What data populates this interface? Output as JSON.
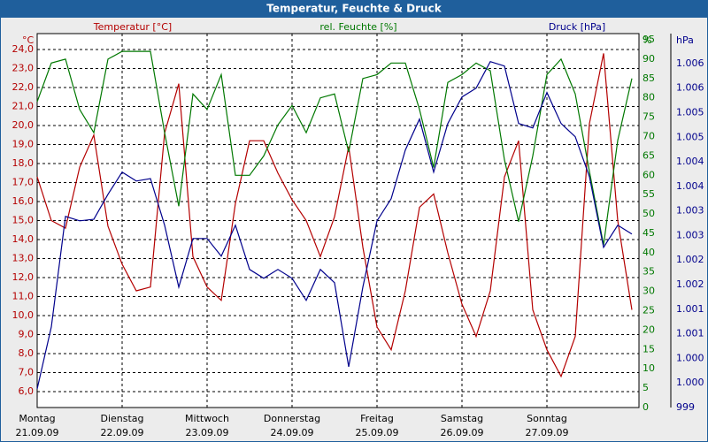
{
  "chart_data": {
    "type": "line",
    "title": "Temperatur, Feuchte & Druck",
    "y_label": "Temperatur [°C]",
    "y2_label": "rel. Feuchte [%]",
    "y3_label": "Druck [hPa]",
    "y_unit": "°C",
    "y2_unit": "%",
    "y3_unit": "hPa",
    "grid": true,
    "x": [
      0,
      4,
      8,
      12,
      16,
      20,
      24,
      28,
      32,
      36,
      40,
      44,
      48,
      52,
      56,
      60,
      64,
      68,
      72,
      76,
      80,
      84,
      88,
      92,
      96,
      100,
      104,
      108,
      112,
      116,
      120,
      124,
      128,
      132,
      136,
      140,
      144,
      148,
      152,
      156,
      160,
      164,
      168
    ],
    "xlim": [
      0,
      170
    ],
    "xticks": [
      {
        "value": 0,
        "label": "Montag",
        "date": "21.09.09"
      },
      {
        "value": 24,
        "label": "Dienstag",
        "date": "22.09.09"
      },
      {
        "value": 48,
        "label": "Mittwoch",
        "date": "23.09.09"
      },
      {
        "value": 72,
        "label": "Donnerstag",
        "date": "24.09.09"
      },
      {
        "value": 96,
        "label": "Freitag",
        "date": "25.09.09"
      },
      {
        "value": 120,
        "label": "Samstag",
        "date": "26.09.09"
      },
      {
        "value": 144,
        "label": "Sonntag",
        "date": "27.09.09"
      }
    ],
    "ylim": [
      5.16,
      24.84
    ],
    "yticks": [
      {
        "value": 6,
        "label": "6,0"
      },
      {
        "value": 7,
        "label": "7,0"
      },
      {
        "value": 8,
        "label": "8,0"
      },
      {
        "value": 9,
        "label": "9,0"
      },
      {
        "value": 10,
        "label": "10,0"
      },
      {
        "value": 11,
        "label": "11,0"
      },
      {
        "value": 12,
        "label": "12,0"
      },
      {
        "value": 13,
        "label": "13,0"
      },
      {
        "value": 14,
        "label": "14,0"
      },
      {
        "value": 15,
        "label": "15,0"
      },
      {
        "value": 16,
        "label": "16,0"
      },
      {
        "value": 17,
        "label": "17,0"
      },
      {
        "value": 18,
        "label": "18,0"
      },
      {
        "value": 19,
        "label": "19,0"
      },
      {
        "value": 20,
        "label": "20,0"
      },
      {
        "value": 21,
        "label": "21,0"
      },
      {
        "value": 22,
        "label": "22,0"
      },
      {
        "value": 23,
        "label": "23,0"
      },
      {
        "value": 24,
        "label": "24,0"
      }
    ],
    "y2lim": [
      0,
      96.6
    ],
    "y2ticks": [
      0,
      5,
      10,
      15,
      20,
      25,
      30,
      35,
      40,
      45,
      50,
      55,
      60,
      65,
      70,
      75,
      80,
      85,
      90,
      95
    ],
    "y3lim": [
      999,
      1006.61
    ],
    "y3ticks": [
      999,
      {
        "value": 999.5,
        "label": "1.000"
      },
      {
        "value": 1000,
        "label": "1.000"
      },
      {
        "value": 1000.5,
        "label": "1.001"
      },
      {
        "value": 1001,
        "label": "1.001"
      },
      {
        "value": 1001.5,
        "label": "1.002"
      },
      {
        "value": 1002,
        "label": "1.002"
      },
      {
        "value": 1002.5,
        "label": "1.003"
      },
      {
        "value": 1003,
        "label": "1.003"
      },
      {
        "value": 1003.5,
        "label": "1.004"
      },
      {
        "value": 1004,
        "label": "1.004"
      },
      {
        "value": 1004.5,
        "label": "1.005"
      },
      {
        "value": 1005,
        "label": "1.005"
      },
      {
        "value": 1005.5,
        "label": "1.006"
      },
      {
        "value": 1006,
        "label": "1.006"
      }
    ],
    "series": [
      {
        "name": "Temperatur",
        "axis": "y",
        "color": "#b40000",
        "values": [
          17.3,
          15.0,
          14.6,
          17.8,
          19.5,
          14.7,
          12.7,
          11.3,
          11.5,
          19.6,
          22.2,
          13.1,
          11.5,
          10.8,
          15.9,
          19.2,
          19.2,
          17.5,
          16.1,
          15.0,
          13.1,
          15.2,
          18.9,
          13.6,
          9.4,
          8.2,
          11.3,
          15.7,
          16.4,
          13.3,
          10.6,
          8.9,
          11.3,
          17.3,
          19.2,
          10.3,
          8.2,
          6.8,
          8.9,
          20.1,
          23.8,
          15.0,
          10.3
        ]
      },
      {
        "name": "rel. Feuchte",
        "axis": "y2",
        "color": "#007800",
        "values": [
          79,
          89,
          90,
          77,
          71,
          90,
          92,
          92,
          92,
          71,
          52,
          81,
          77,
          86,
          60,
          60,
          65,
          73,
          78,
          71,
          80,
          81,
          66,
          85,
          86,
          89,
          89,
          77,
          62,
          84,
          86,
          89,
          87,
          64,
          48,
          65,
          86,
          90,
          81,
          61,
          42,
          69,
          85
        ]
      },
      {
        "name": "Druck",
        "axis": "y3",
        "color": "#00008c",
        "values": [
          999.38,
          1000.64,
          1002.89,
          1002.8,
          1002.83,
          1003.34,
          1003.79,
          1003.61,
          1003.66,
          1002.71,
          1001.45,
          1002.44,
          1002.44,
          1002.08,
          1002.71,
          1001.81,
          1001.63,
          1001.81,
          1001.63,
          1001.18,
          1001.81,
          1001.54,
          999.83,
          1001.45,
          1002.8,
          1003.25,
          1004.24,
          1004.87,
          1003.79,
          1004.78,
          1005.32,
          1005.5,
          1006.04,
          1005.95,
          1004.78,
          1004.69,
          1005.41,
          1004.78,
          1004.51,
          1003.7,
          1002.26,
          1002.71,
          1002.53
        ]
      }
    ]
  }
}
